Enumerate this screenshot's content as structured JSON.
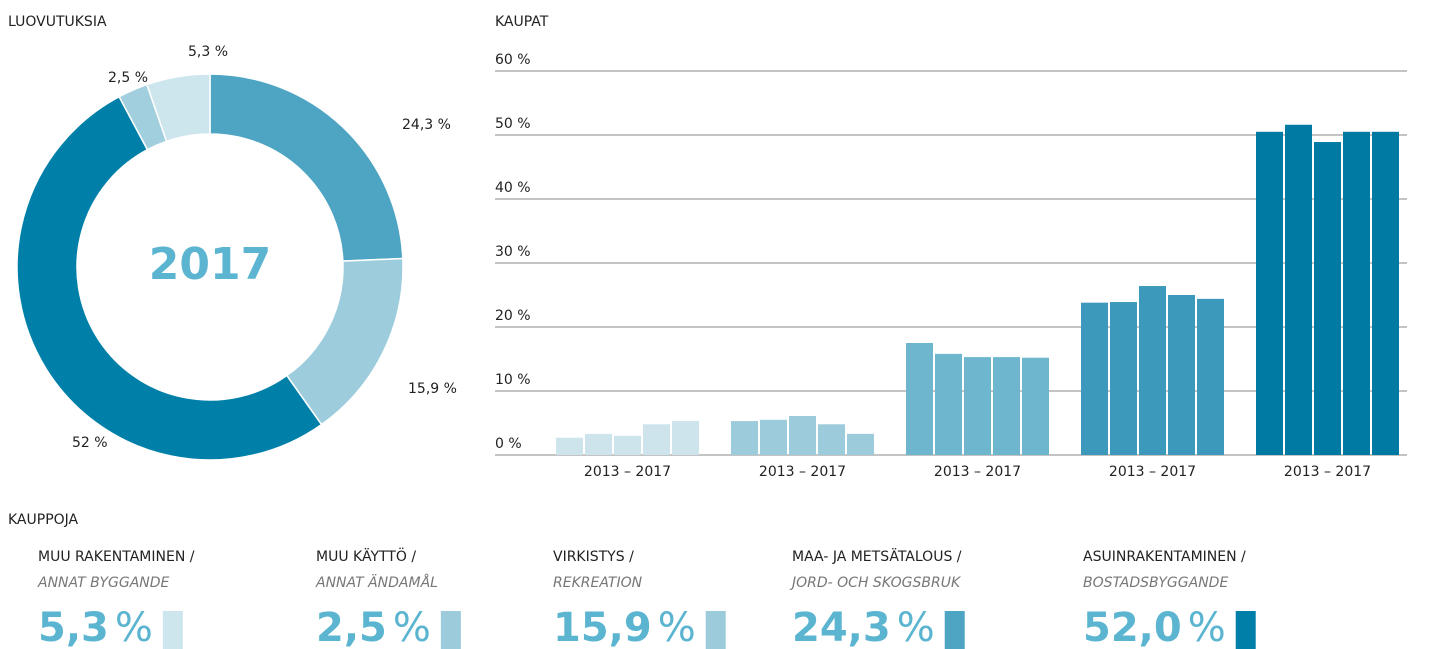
{
  "charts": [
    {
      "type": "donut",
      "title": "LUOVUTUKSIA",
      "center_label": "2017",
      "values": [
        24.3,
        15.9,
        52,
        2.5,
        5.3
      ],
      "value_labels": [
        "24,3 %",
        "15,9 %",
        "52 %",
        "2,5 %",
        "5,3 %"
      ],
      "colors": [
        "#4da4c3",
        "#9dcddd",
        "#0080a8",
        "#a2cfde",
        "#cde5ed"
      ]
    },
    {
      "type": "grouped_bar",
      "title": "KAUPAT",
      "categories": [
        "2013 – 2017",
        "2013 – 2017",
        "2013 – 2017",
        "2013 – 2017",
        "2013 – 2017"
      ],
      "groups": [
        {
          "color": "#cde4ec",
          "values": [
            2.7,
            3.3,
            3.0,
            4.8,
            5.3
          ]
        },
        {
          "color": "#9ccbdb",
          "values": [
            5.3,
            5.5,
            6.1,
            4.8,
            3.3
          ]
        },
        {
          "color": "#6db6cd",
          "values": [
            17.5,
            15.8,
            15.3,
            15.3,
            15.2
          ]
        },
        {
          "color": "#3d99bc",
          "values": [
            23.8,
            23.9,
            26.4,
            25.0,
            24.4
          ]
        },
        {
          "color": "#0079a3",
          "values": [
            50.5,
            51.6,
            48.9,
            50.5,
            50.5
          ]
        }
      ],
      "ylim": [
        0,
        60
      ],
      "yticks": [
        {
          "value": 0,
          "label": "0 %"
        },
        {
          "value": 10,
          "label": "10 %"
        },
        {
          "value": 20,
          "label": "20 %"
        },
        {
          "value": 30,
          "label": "30 %"
        },
        {
          "value": 40,
          "label": "40 %"
        },
        {
          "value": 50,
          "label": "50 %"
        },
        {
          "value": 60,
          "label": "60 %"
        }
      ],
      "grid": true
    },
    {
      "type": "legend",
      "title": "KAUPPOJA",
      "unit": "%",
      "items": [
        {
          "name": "MUU RAKENTAMINEN /",
          "subname": "ANNAT BYGGANDE",
          "value": 5.3,
          "value_label": "5,3",
          "color": "#cde5ed"
        },
        {
          "name": "MUU KÄYTTÖ /",
          "subname": "ANNAT ÄNDAMÅL",
          "value": 2.5,
          "value_label": "2,5",
          "color": "#9ccbdb"
        },
        {
          "name": "VIRKISTYS /",
          "subname": "REKREATION",
          "value": 15.9,
          "value_label": "15,9",
          "color": "#9ccbdb"
        },
        {
          "name": "MAA- JA METSÄTALOUS /",
          "subname": "JORD- OCH SKOGSBRUK",
          "value": 24.3,
          "value_label": "24,3",
          "color": "#4da4c3"
        },
        {
          "name": "ASUINRAKENTAMINEN /",
          "subname": "BOSTADSBYGGANDE",
          "value": 52.0,
          "value_label": "52,0",
          "color": "#0080a8"
        }
      ]
    }
  ]
}
